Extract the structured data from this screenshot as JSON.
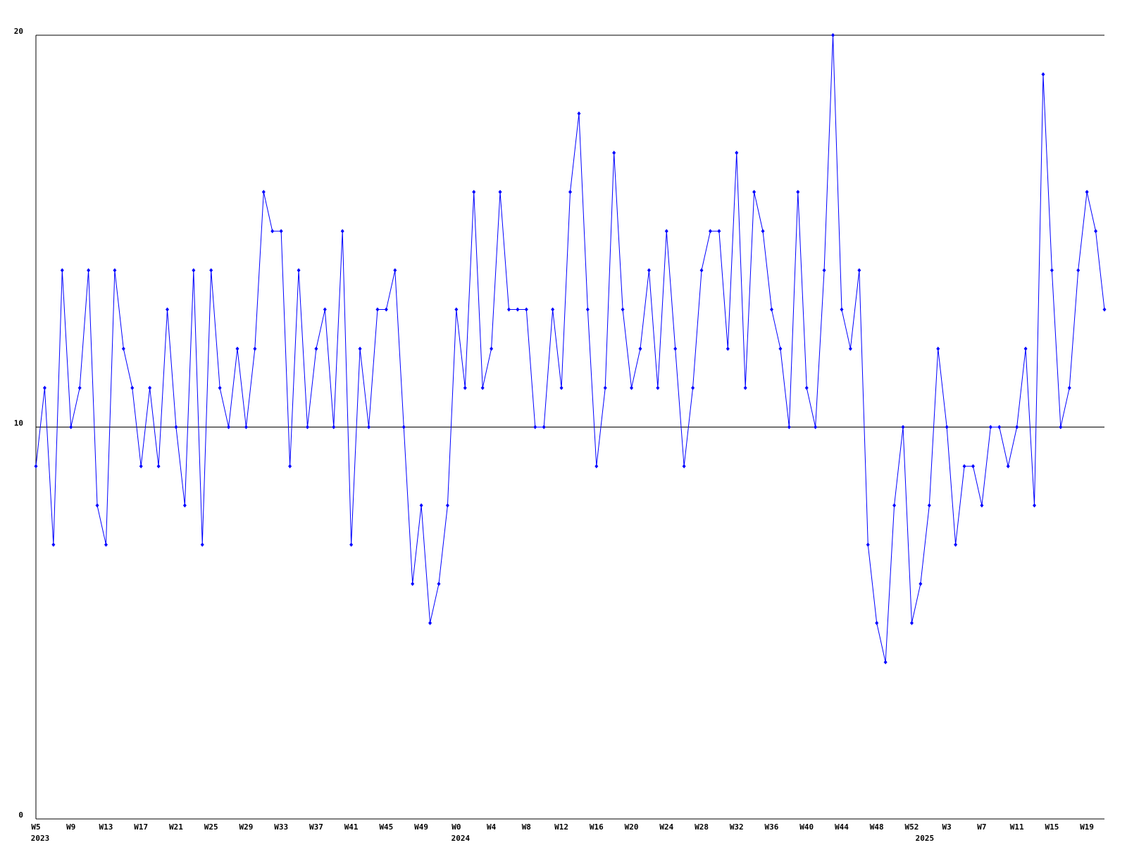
{
  "chart_data": {
    "type": "line",
    "categories": [
      "W5",
      null,
      null,
      null,
      "W9",
      null,
      null,
      null,
      "W13",
      null,
      null,
      null,
      "W17",
      null,
      null,
      null,
      "W21",
      null,
      null,
      null,
      "W25",
      null,
      null,
      null,
      "W29",
      null,
      null,
      null,
      "W33",
      null,
      null,
      null,
      "W37",
      null,
      null,
      null,
      "W41",
      null,
      null,
      null,
      "W45",
      null,
      null,
      null,
      "W49",
      null,
      null,
      null,
      "W0",
      null,
      null,
      null,
      "W4",
      null,
      null,
      null,
      "W8",
      null,
      null,
      null,
      "W12",
      null,
      null,
      null,
      "W16",
      null,
      null,
      null,
      "W20",
      null,
      null,
      null,
      "W24",
      null,
      null,
      null,
      "W28",
      null,
      null,
      null,
      "W32",
      null,
      null,
      null,
      "W36",
      null,
      null,
      null,
      "W40",
      null,
      null,
      null,
      "W44",
      null,
      null,
      null,
      "W48",
      null,
      null,
      null,
      "W52",
      null,
      null,
      null,
      "W3",
      null,
      null,
      null,
      "W7",
      null,
      null,
      null,
      "W11",
      null,
      null,
      null,
      "W15",
      null,
      null,
      null,
      "W19",
      null,
      null
    ],
    "category_years": [
      "2023",
      null,
      null,
      null,
      null,
      null,
      null,
      null,
      null,
      null,
      null,
      null,
      null,
      null,
      null,
      null,
      null,
      null,
      null,
      null,
      null,
      null,
      null,
      null,
      null,
      null,
      null,
      null,
      null,
      null,
      null,
      null,
      null,
      null,
      null,
      null,
      null,
      null,
      null,
      null,
      null,
      null,
      null,
      null,
      null,
      null,
      null,
      null,
      "2024",
      null,
      null,
      null,
      null,
      null,
      null,
      null,
      null,
      null,
      null,
      null,
      null,
      null,
      null,
      null,
      null,
      null,
      null,
      null,
      null,
      null,
      null,
      null,
      null,
      null,
      null,
      null,
      null,
      null,
      null,
      null,
      null,
      null,
      null,
      null,
      null,
      null,
      null,
      null,
      null,
      null,
      null,
      null,
      null,
      null,
      null,
      null,
      null,
      null,
      null,
      null,
      null,
      "2025",
      null,
      null,
      null,
      null,
      null,
      null,
      null,
      null,
      null,
      null,
      null,
      null,
      null,
      null,
      null,
      null,
      null,
      null,
      null,
      null,
      null
    ],
    "series": [
      {
        "color": "#0000ff",
        "values": [
          9,
          11,
          7,
          14,
          10,
          11,
          14,
          8,
          7,
          14,
          12,
          11,
          9,
          11,
          9,
          13,
          10,
          8,
          14,
          7,
          14,
          11,
          10,
          12,
          10,
          12,
          16,
          15,
          15,
          9,
          14,
          10,
          12,
          13,
          10,
          15,
          7,
          12,
          10,
          13,
          13,
          14,
          10,
          6,
          8,
          5,
          6,
          8,
          13,
          11,
          16,
          11,
          12,
          16,
          13,
          13,
          13,
          10,
          10,
          13,
          11,
          16,
          18,
          13,
          9,
          11,
          17,
          13,
          11,
          12,
          14,
          11,
          15,
          12,
          9,
          11,
          14,
          15,
          15,
          12,
          17,
          11,
          16,
          15,
          13,
          12,
          10,
          16,
          11,
          10,
          14,
          20,
          13,
          12,
          14,
          7,
          5,
          4,
          8,
          10,
          5,
          6,
          8,
          12,
          10,
          7,
          9,
          9,
          8,
          10,
          10,
          9,
          10,
          12,
          8,
          19,
          14,
          10,
          11,
          14,
          16,
          15,
          13
        ]
      }
    ],
    "ylim": [
      0,
      20
    ],
    "yticks": [
      0,
      10,
      20
    ],
    "grid": true
  }
}
